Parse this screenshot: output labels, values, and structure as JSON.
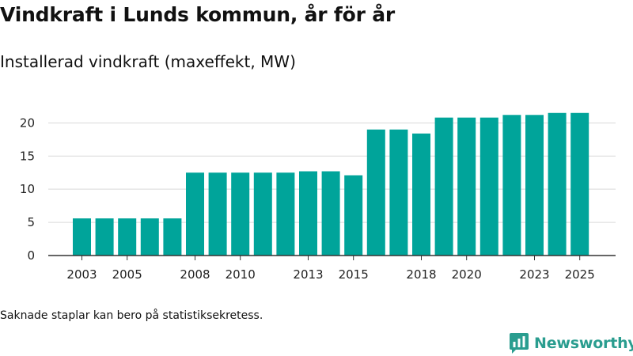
{
  "header": {
    "title": "Vindkraft i Lunds kommun, år för år",
    "subtitle": "Installerad vindkraft (maxeffekt, MW)"
  },
  "footnote": "Saknade staplar kan bero på statistiksekretess.",
  "brand": {
    "name": "Newsworthy",
    "color": "#2a9d8f"
  },
  "colors": {
    "bar": "#00a49a",
    "grid": "#d9d9d9",
    "axis": "#333333"
  },
  "chart_data": {
    "type": "bar",
    "title": "Vindkraft i Lunds kommun, år för år",
    "subtitle": "Installerad vindkraft (maxeffekt, MW)",
    "xlabel": "",
    "ylabel": "",
    "ylim": [
      0,
      23.5
    ],
    "yticks": [
      0,
      5,
      10,
      15,
      20
    ],
    "categories": [
      2003,
      2004,
      2005,
      2006,
      2007,
      2008,
      2009,
      2010,
      2011,
      2012,
      2013,
      2014,
      2015,
      2016,
      2017,
      2018,
      2019,
      2020,
      2021,
      2022,
      2023,
      2024,
      2025
    ],
    "xtick_labels": [
      "2003",
      "2005",
      "2008",
      "2010",
      "2013",
      "2015",
      "2018",
      "2020",
      "2023",
      "2025"
    ],
    "values": [
      5.6,
      5.6,
      5.6,
      5.6,
      5.6,
      12.5,
      12.5,
      12.5,
      12.5,
      12.5,
      12.7,
      12.7,
      12.1,
      19.0,
      19.0,
      18.4,
      20.8,
      20.8,
      20.8,
      21.2,
      21.2,
      21.5,
      21.5
    ],
    "grid": true,
    "legend": "none"
  }
}
